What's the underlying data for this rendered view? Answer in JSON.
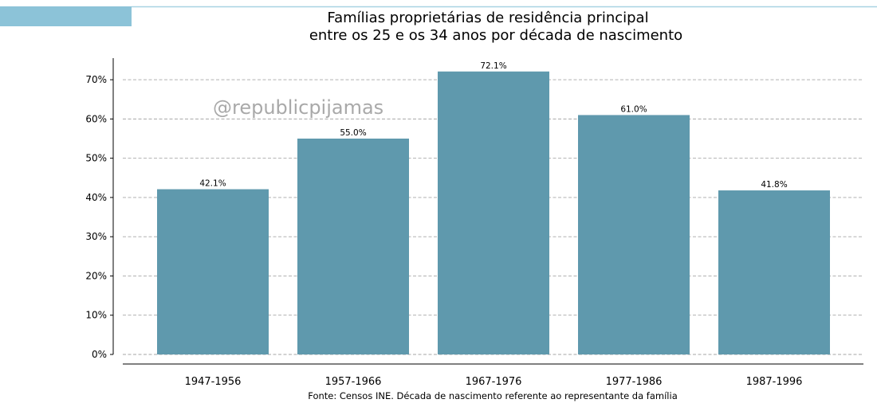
{
  "chart_data": {
    "type": "bar",
    "title": [
      "Famílias proprietárias de residência principal",
      "entre os 25 e os 34 anos por década de nascimento"
    ],
    "categories": [
      "1947-1956",
      "1957-1966",
      "1967-1976",
      "1977-1986",
      "1987-1996"
    ],
    "values": [
      42.1,
      55.0,
      72.1,
      61.0,
      41.8
    ],
    "data_labels": [
      "42.1%",
      "55.0%",
      "72.1%",
      "61.0%",
      "41.8%"
    ],
    "yticks": [
      0,
      10,
      20,
      30,
      40,
      50,
      60,
      70
    ],
    "ytick_labels": [
      "0%",
      "10%",
      "20%",
      "30%",
      "40%",
      "50%",
      "60%",
      "70%"
    ],
    "ylim": [
      0,
      75.5
    ],
    "xlabel": "",
    "ylabel": "",
    "grid": "horizontal dashed",
    "source": "Fonte: Censos INE. Década de nascimento referente ao representante da família",
    "watermark": "@republicpijamas",
    "colors": {
      "bar": "#5f99ad",
      "grid": "#a6a6a6",
      "accent": "#8cc3d8",
      "accent_line": "#a8d3e2",
      "axis": "#000000"
    }
  }
}
